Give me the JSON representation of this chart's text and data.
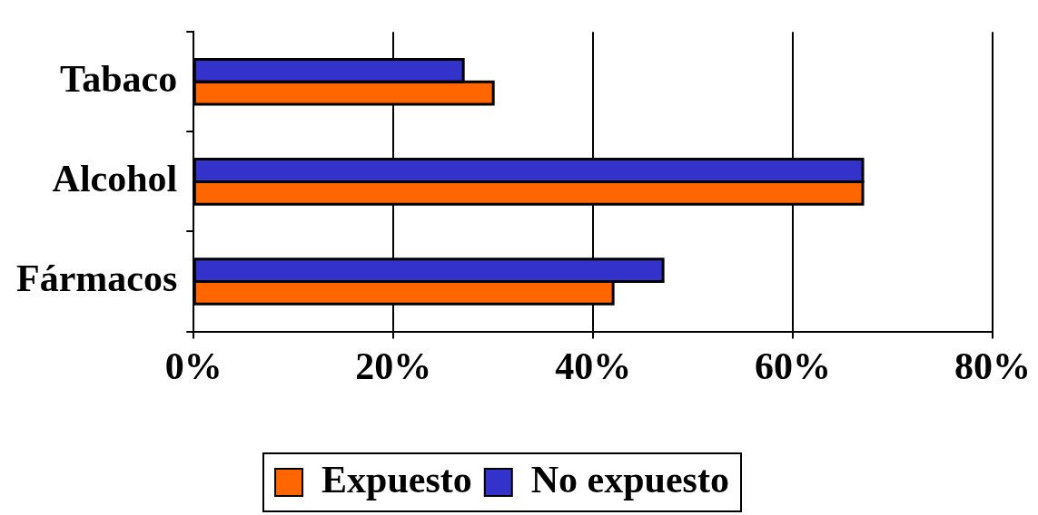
{
  "chart_data": {
    "type": "bar",
    "orientation": "horizontal",
    "categories": [
      "Tabaco",
      "Alcohol",
      "Fármacos"
    ],
    "series": [
      {
        "name": "Expuesto",
        "color": "#ff6600",
        "values": [
          30,
          67,
          42
        ]
      },
      {
        "name": "No expuesto",
        "color": "#3333cc",
        "values": [
          27,
          67,
          47
        ]
      }
    ],
    "xlim": [
      0,
      80
    ],
    "xticks": [
      {
        "value": 0,
        "label": "0%"
      },
      {
        "value": 20,
        "label": "20%"
      },
      {
        "value": 40,
        "label": "40%"
      },
      {
        "value": 60,
        "label": "60%"
      },
      {
        "value": 80,
        "label": "80%"
      }
    ],
    "grid": "x",
    "legend": "bottom"
  }
}
